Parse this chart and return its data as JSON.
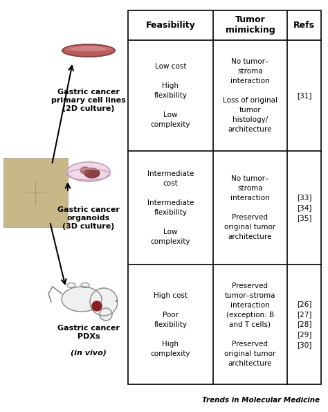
{
  "title": "Trends in Molecular Medicine",
  "background_color": "#ffffff",
  "col_headers": [
    "Feasibility",
    "Tumor\nmimicking",
    "Refs"
  ],
  "row1_label": "Gastric cancer\nprimary cell lines\n(2D culture)",
  "row2_label": "Gastric cancer\norganoids\n(3D culture)",
  "row3_label": "Gastric cancer\nPDXs\n(in vivo)",
  "row1_feasibility": "Low cost\n\nHigh\nflexibility\n\nLow\ncomplexity",
  "row2_feasibility": "Intermediate\ncost\n\nIntermediate\nflexibility\n\nLow\ncomplexity",
  "row3_feasibility": "High cost\n\nPoor\nflexibility\n\nHigh\ncomplexity",
  "row1_tumor": "No tumor–\nstroma\ninteraction\n\nLoss of original\ntumor\nhistology/\narchitecture",
  "row2_tumor": "No tumor–\nstroma\ninteraction\n\nPreserved\noriginal tumor\narchitecture",
  "row3_tumor": "Preserved\ntumor–stroma\ninteraction\n(exception: B\nand T cells)\n\nPreserved\noriginal tumor\narchitecture",
  "row1_refs": "[31]",
  "row2_refs": "[33]\n[34]\n[35]",
  "row3_refs": "[26]\n[27]\n[28]\n[29]\n[30]"
}
